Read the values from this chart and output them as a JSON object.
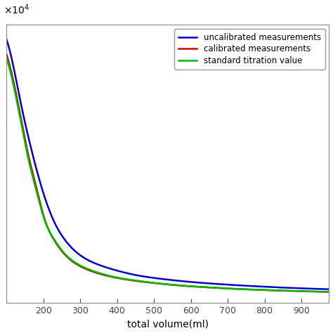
{
  "title": "",
  "xlabel": "total volume(ml)",
  "ylabel_exponent": "×10⁴",
  "xlim": [
    100,
    975
  ],
  "ylim": [
    0,
    38000
  ],
  "x_ticks": [
    200,
    300,
    400,
    500,
    600,
    700,
    800,
    900
  ],
  "y_ticks": [],
  "legend": [
    {
      "label": "uncalibrated measurements",
      "color": "#0000cc"
    },
    {
      "label": "calibrated measurements",
      "color": "#cc0000"
    },
    {
      "label": "standard titration value",
      "color": "#00bb00"
    }
  ],
  "blue_x": [
    100,
    120,
    140,
    160,
    180,
    200,
    230,
    260,
    300,
    350,
    400,
    450,
    500,
    550,
    600,
    650,
    700,
    750,
    800,
    850,
    900,
    950,
    975
  ],
  "blue_y": [
    36000,
    32000,
    27000,
    22500,
    18500,
    15000,
    11000,
    8500,
    6500,
    5200,
    4400,
    3800,
    3400,
    3100,
    2850,
    2650,
    2480,
    2330,
    2200,
    2080,
    1980,
    1890,
    1860
  ],
  "red_x": [
    100,
    120,
    140,
    160,
    180,
    200,
    230,
    260,
    300,
    350,
    400,
    450,
    500,
    550,
    600,
    650,
    700,
    750,
    800,
    850,
    900,
    950,
    975
  ],
  "red_y": [
    34000,
    30000,
    25000,
    20000,
    16000,
    12000,
    8500,
    6500,
    5000,
    4000,
    3400,
    3000,
    2700,
    2450,
    2250,
    2100,
    1950,
    1840,
    1740,
    1660,
    1580,
    1520,
    1490
  ],
  "green_x": [
    100,
    120,
    140,
    160,
    180,
    200,
    230,
    260,
    300,
    350,
    400,
    450,
    500,
    550,
    600,
    650,
    700,
    750,
    800,
    850,
    900,
    950,
    975
  ],
  "green_y": [
    33500,
    29500,
    24500,
    19500,
    15500,
    11800,
    8600,
    6600,
    5100,
    4100,
    3450,
    3050,
    2720,
    2470,
    2270,
    2110,
    1960,
    1850,
    1750,
    1665,
    1590,
    1525,
    1500
  ],
  "line_width": 1.8,
  "background_color": "#ffffff",
  "font_size_ticks": 9,
  "font_size_xlabel": 10,
  "font_size_legend": 8.5
}
